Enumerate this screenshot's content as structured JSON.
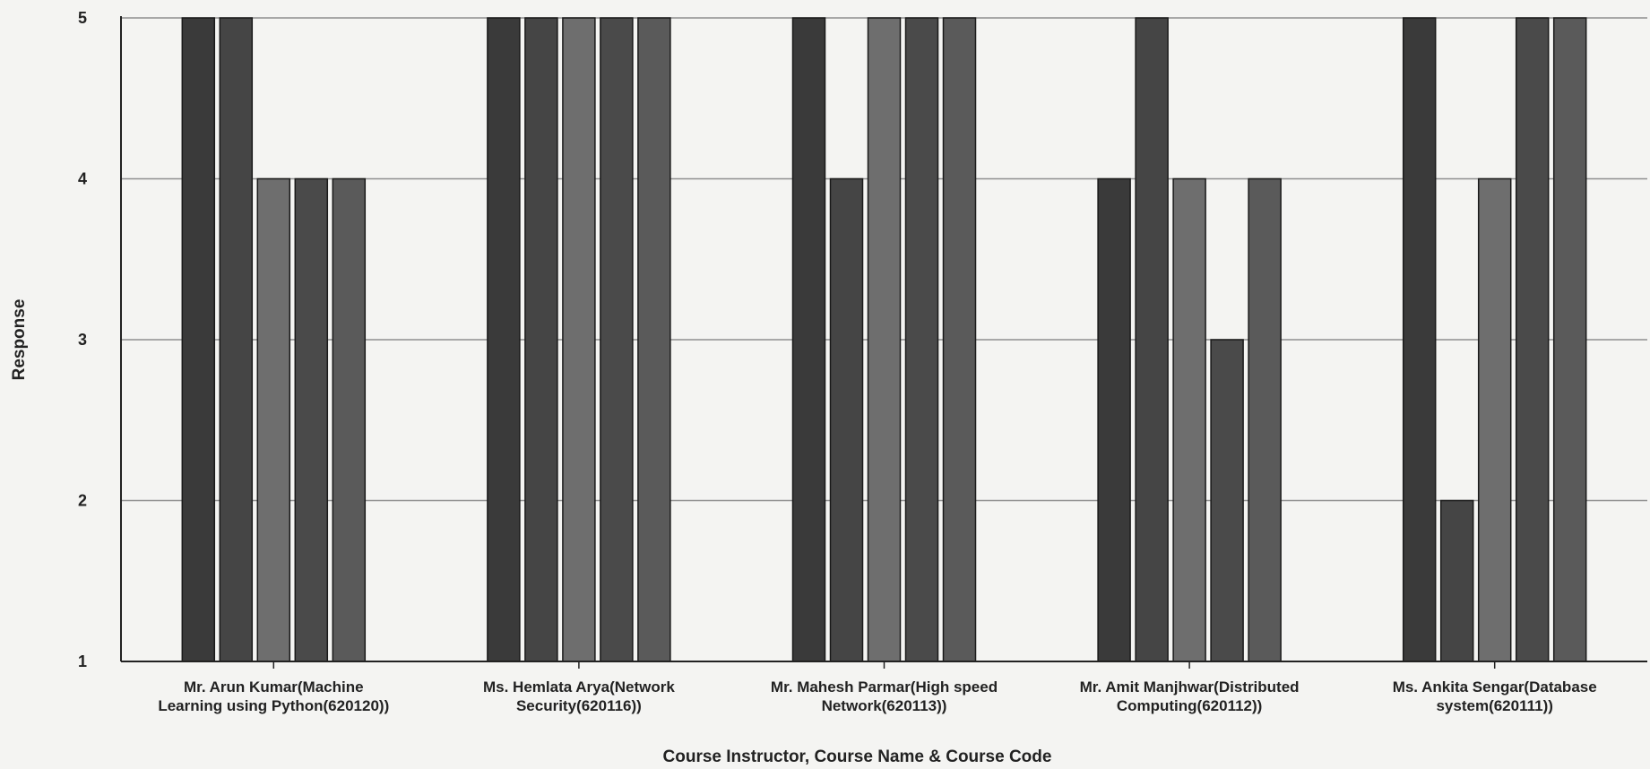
{
  "chart_data": {
    "type": "bar",
    "title": "",
    "xlabel": "Course Instructor, Course Name & Course Code",
    "ylabel": "Response",
    "ylim": [
      1,
      5
    ],
    "yticks": [
      1,
      2,
      3,
      4,
      5
    ],
    "grid": true,
    "legend": "none",
    "categories": [
      [
        "Mr. Arun Kumar(Machine",
        "Learning using Python(620120))"
      ],
      [
        "Ms. Hemlata Arya(Network",
        "Security(620116))"
      ],
      [
        "Mr. Mahesh Parmar(High speed",
        "Network(620113))"
      ],
      [
        "Mr. Amit Manjhwar(Distributed",
        "Computing(620112))"
      ],
      [
        "Ms. Ankita Sengar(Database",
        "system(620111))"
      ]
    ],
    "series": [
      {
        "values": [
          5,
          5,
          5,
          4,
          5
        ]
      },
      {
        "values": [
          5,
          5,
          4,
          5,
          2
        ]
      },
      {
        "values": [
          4,
          5,
          5,
          4,
          4
        ]
      },
      {
        "values": [
          4,
          5,
          5,
          3,
          5
        ]
      },
      {
        "values": [
          4,
          5,
          5,
          4,
          5
        ]
      }
    ],
    "series_colors": [
      "#3a3a3a",
      "#454545",
      "#6e6e6e",
      "#4a4a4a",
      "#5a5a5a"
    ]
  }
}
